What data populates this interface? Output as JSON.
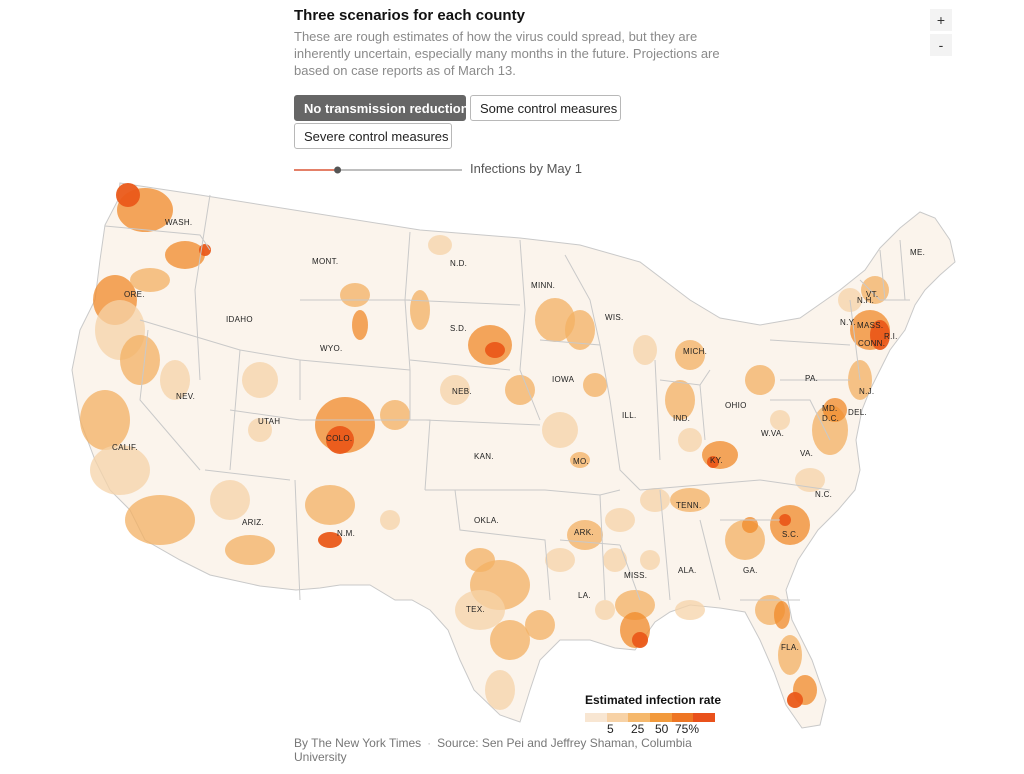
{
  "header": {
    "title": "Three scenarios for each county",
    "description": "These are rough estimates of how the virus could spread, but they are inherently uncertain, especially many months in the future. Projections are based on case reports as of March 13."
  },
  "zoom": {
    "in_label": "+",
    "out_label": "-"
  },
  "scenarios": [
    {
      "label": "No transmission reduction",
      "active": true
    },
    {
      "label": "Some control measures",
      "active": false
    },
    {
      "label": "Severe control measures",
      "active": false
    }
  ],
  "slider": {
    "label": "Infections by May 1",
    "progress_fraction": 0.2
  },
  "map": {
    "state_labels": [
      "WASH.",
      "ORE.",
      "CALIF.",
      "NEV.",
      "IDAHO",
      "MONT.",
      "WYO.",
      "UTAH",
      "ARIZ.",
      "COLO.",
      "N.M.",
      "N.D.",
      "S.D.",
      "NEB.",
      "KAN.",
      "OKLA.",
      "TEX.",
      "MINN.",
      "IOWA",
      "MO.",
      "ARK.",
      "LA.",
      "WIS.",
      "ILL.",
      "MICH.",
      "IND.",
      "OHIO",
      "KY.",
      "TENN.",
      "MISS.",
      "ALA.",
      "GA.",
      "FLA.",
      "S.C.",
      "N.C.",
      "VA.",
      "W.VA.",
      "PA.",
      "N.Y.",
      "MD.",
      "D.C.",
      "DEL.",
      "N.J.",
      "CONN.",
      "R.I.",
      "MASS.",
      "VT.",
      "N.H.",
      "ME."
    ],
    "colors": {
      "land": "#fbf4ec",
      "light": "#f5d3a8",
      "mid": "#f3b063",
      "strong": "#f08a2a",
      "high": "#ea5a1a",
      "border": "#c9c9c9"
    }
  },
  "legend": {
    "title": "Estimated infection rate",
    "ticks": [
      "5",
      "25",
      "50",
      "75%"
    ],
    "colors": [
      "#f8e6d2",
      "#f7d2a6",
      "#f5b86c",
      "#f29a3c",
      "#ee7624",
      "#e9511b"
    ]
  },
  "credit": {
    "byline": "By The New York Times",
    "source": "Source: Sen Pei and Jeffrey Shaman, Columbia University"
  }
}
